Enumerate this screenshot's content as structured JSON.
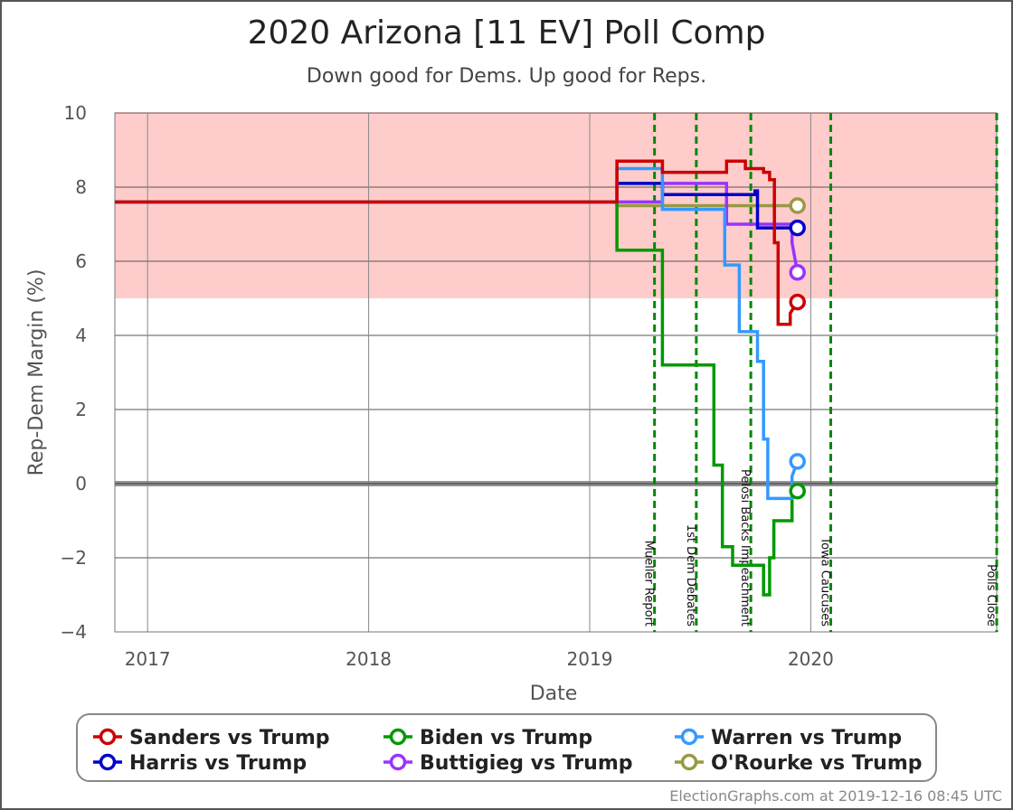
{
  "chart_data": {
    "type": "line",
    "title": "2020 Arizona [11 EV] Poll Comp",
    "subtitle": "Down good for Dems. Up good for Reps.",
    "xlabel": "Date",
    "ylabel": "Rep-Dem Margin (%)",
    "x_ticks": [
      "2017",
      "2018",
      "2019",
      "2020"
    ],
    "y_ticks": [
      "10",
      "8",
      "6",
      "4",
      "2",
      "0",
      "−2",
      "−4"
    ],
    "ylim": [
      -4,
      10
    ],
    "xlim": [
      "2016-11-08",
      "2020-11-03"
    ],
    "grid": true,
    "shaded_band": {
      "from": 5,
      "to": 10,
      "color": "#ffcccc"
    },
    "zero_line": 0,
    "events": [
      {
        "date": "2019-04-18",
        "label": "Mueller Report"
      },
      {
        "date": "2019-06-26",
        "label": "1st Dem Debates"
      },
      {
        "date": "2019-09-24",
        "label": "Pelosi Backs Impeachment"
      },
      {
        "date": "2020-02-03",
        "label": "Iowa Caucuses"
      },
      {
        "date": "2020-11-03",
        "label": "Polls Close"
      }
    ],
    "series": [
      {
        "name": "Sanders vs Trump",
        "color": "#cc0000",
        "points": [
          [
            "2016-11-08",
            7.6
          ],
          [
            "2019-02-15",
            7.6
          ],
          [
            "2019-02-15",
            8.7
          ],
          [
            "2019-05-01",
            8.7
          ],
          [
            "2019-05-01",
            8.4
          ],
          [
            "2019-08-15",
            8.4
          ],
          [
            "2019-08-15",
            8.7
          ],
          [
            "2019-09-15",
            8.7
          ],
          [
            "2019-09-15",
            8.5
          ],
          [
            "2019-10-15",
            8.5
          ],
          [
            "2019-10-15",
            8.4
          ],
          [
            "2019-10-25",
            8.4
          ],
          [
            "2019-10-25",
            8.2
          ],
          [
            "2019-11-02",
            8.2
          ],
          [
            "2019-11-02",
            6.5
          ],
          [
            "2019-11-08",
            6.5
          ],
          [
            "2019-11-08",
            4.3
          ],
          [
            "2019-11-28",
            4.3
          ],
          [
            "2019-11-28",
            4.6
          ],
          [
            "2019-12-10",
            4.9
          ]
        ],
        "end_value": 4.9
      },
      {
        "name": "Biden vs Trump",
        "color": "#009900",
        "points": [
          [
            "2016-11-08",
            7.6
          ],
          [
            "2019-02-15",
            7.6
          ],
          [
            "2019-02-15",
            6.3
          ],
          [
            "2019-05-01",
            6.3
          ],
          [
            "2019-05-01",
            3.2
          ],
          [
            "2019-07-25",
            3.2
          ],
          [
            "2019-07-25",
            0.5
          ],
          [
            "2019-08-08",
            0.5
          ],
          [
            "2019-08-08",
            -1.7
          ],
          [
            "2019-08-25",
            -1.7
          ],
          [
            "2019-08-25",
            -2.2
          ],
          [
            "2019-10-15",
            -2.2
          ],
          [
            "2019-10-15",
            -3.0
          ],
          [
            "2019-10-25",
            -3.0
          ],
          [
            "2019-10-25",
            -2.0
          ],
          [
            "2019-11-01",
            -2.0
          ],
          [
            "2019-11-01",
            -1.0
          ],
          [
            "2019-12-01",
            -1.0
          ],
          [
            "2019-12-01",
            -0.4
          ],
          [
            "2019-12-10",
            -0.2
          ]
        ],
        "end_value": -0.2
      },
      {
        "name": "Warren vs Trump",
        "color": "#3399ff",
        "points": [
          [
            "2016-11-08",
            7.6
          ],
          [
            "2019-02-15",
            7.6
          ],
          [
            "2019-02-15",
            8.5
          ],
          [
            "2019-05-01",
            8.5
          ],
          [
            "2019-05-01",
            7.4
          ],
          [
            "2019-08-12",
            7.4
          ],
          [
            "2019-08-12",
            5.9
          ],
          [
            "2019-09-05",
            5.9
          ],
          [
            "2019-09-05",
            4.1
          ],
          [
            "2019-10-05",
            4.1
          ],
          [
            "2019-10-05",
            3.3
          ],
          [
            "2019-10-15",
            3.3
          ],
          [
            "2019-10-15",
            1.2
          ],
          [
            "2019-10-22",
            1.2
          ],
          [
            "2019-10-22",
            -0.4
          ],
          [
            "2019-12-01",
            -0.4
          ],
          [
            "2019-12-01",
            0.2
          ],
          [
            "2019-12-10",
            0.6
          ]
        ],
        "end_value": 0.6
      },
      {
        "name": "Harris vs Trump",
        "color": "#0000cc",
        "points": [
          [
            "2016-11-08",
            7.6
          ],
          [
            "2019-02-15",
            7.6
          ],
          [
            "2019-02-15",
            8.1
          ],
          [
            "2019-05-01",
            8.1
          ],
          [
            "2019-05-01",
            7.8
          ],
          [
            "2019-10-01",
            7.8
          ],
          [
            "2019-10-01",
            7.9
          ],
          [
            "2019-10-05",
            7.9
          ],
          [
            "2019-10-05",
            6.9
          ],
          [
            "2019-12-10",
            6.9
          ]
        ],
        "end_value": 6.9
      },
      {
        "name": "Buttigieg vs Trump",
        "color": "#9933ff",
        "points": [
          [
            "2016-11-08",
            7.6
          ],
          [
            "2019-05-01",
            7.6
          ],
          [
            "2019-05-01",
            8.1
          ],
          [
            "2019-08-15",
            8.1
          ],
          [
            "2019-08-15",
            7.0
          ],
          [
            "2019-12-01",
            7.0
          ],
          [
            "2019-12-01",
            6.5
          ],
          [
            "2019-12-10",
            5.7
          ]
        ],
        "end_value": 5.7
      },
      {
        "name": "O'Rourke vs Trump",
        "color": "#999944",
        "points": [
          [
            "2016-11-08",
            7.6
          ],
          [
            "2019-02-15",
            7.6
          ],
          [
            "2019-02-15",
            7.5
          ],
          [
            "2019-12-10",
            7.5
          ]
        ],
        "end_value": 7.5
      }
    ],
    "legend": {
      "placement": "bottom",
      "entries": [
        "Sanders vs Trump",
        "Biden vs Trump",
        "Warren vs Trump",
        "Harris vs Trump",
        "Buttigieg vs Trump",
        "O'Rourke vs Trump"
      ]
    }
  },
  "footer": "ElectionGraphs.com at 2019-12-16 08:45 UTC"
}
